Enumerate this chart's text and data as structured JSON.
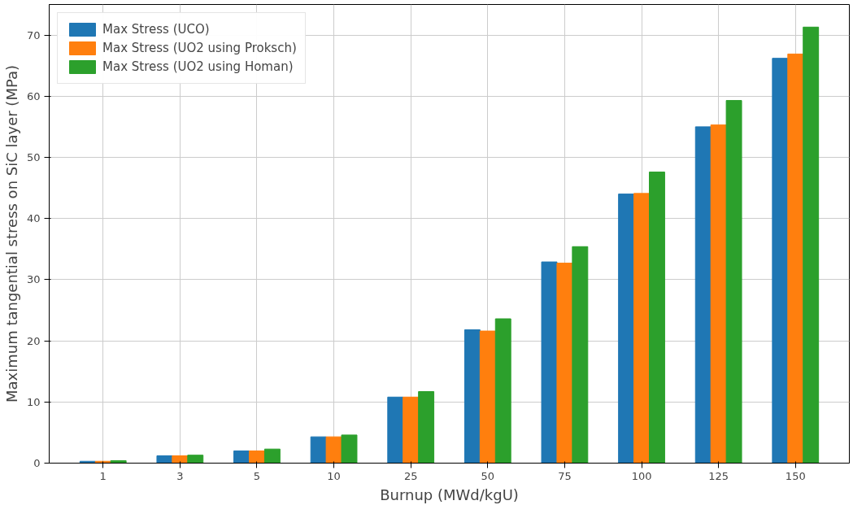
{
  "chart_data": {
    "type": "bar",
    "xlabel": "Burnup (MWd/kgU)",
    "ylabel": "Maximum tangential stress on SiC layer (MPa)",
    "categories": [
      "1",
      "3",
      "5",
      "10",
      "25",
      "50",
      "75",
      "100",
      "125",
      "150"
    ],
    "series": [
      {
        "name": "Max Stress (UCO)",
        "color": "#1f77b4",
        "values": [
          0.3,
          1.2,
          2.0,
          4.3,
          10.8,
          21.8,
          32.9,
          44.0,
          55.0,
          66.2
        ]
      },
      {
        "name": "Max Stress (UO2 using Proksch)",
        "color": "#ff7f0e",
        "values": [
          0.3,
          1.2,
          2.0,
          4.3,
          10.8,
          21.6,
          32.7,
          44.1,
          55.3,
          66.9
        ]
      },
      {
        "name": "Max Stress (UO2 using Homan)",
        "color": "#2ca02c",
        "values": [
          0.4,
          1.3,
          2.3,
          4.6,
          11.7,
          23.6,
          35.4,
          47.6,
          59.3,
          71.3
        ]
      }
    ],
    "ylim": [
      0,
      75
    ],
    "yticks": [
      0,
      10,
      20,
      30,
      40,
      50,
      60,
      70
    ],
    "grid": true,
    "legend": "top left"
  }
}
